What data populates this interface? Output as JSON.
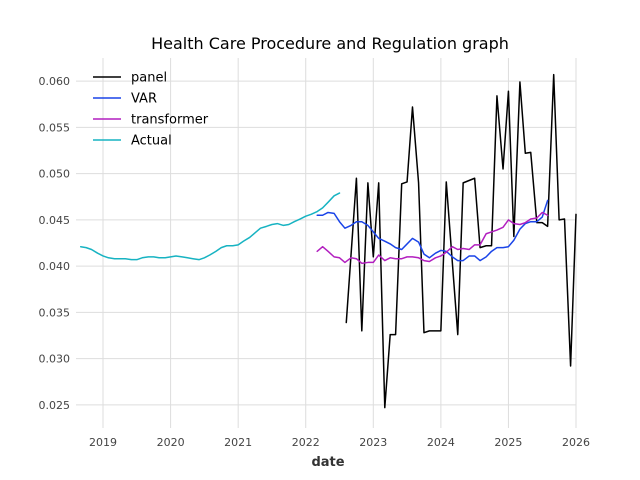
{
  "chart_data": {
    "type": "line",
    "title": "Health Care Procedure and Regulation graph",
    "xlabel": "date",
    "ylabel": "",
    "x_axis": {
      "min": 2018.6,
      "max": 2026.0,
      "ticks": [
        2019,
        2020,
        2021,
        2022,
        2023,
        2024,
        2025,
        2026
      ],
      "tick_labels": [
        "2019",
        "2020",
        "2021",
        "2022",
        "2023",
        "2024",
        "2025",
        "2026"
      ]
    },
    "y_axis": {
      "min": 0.0225,
      "max": 0.0625,
      "ticks": [
        0.025,
        0.03,
        0.035,
        0.04,
        0.045,
        0.05,
        0.055,
        0.06
      ],
      "tick_labels": [
        "0.025",
        "0.030",
        "0.035",
        "0.040",
        "0.045",
        "0.050",
        "0.055",
        "0.060"
      ]
    },
    "grid": true,
    "legend_position": "top-left",
    "series": [
      {
        "name": "panel",
        "color": "#000000",
        "points": [
          [
            2022.6,
            0.0339
          ],
          [
            2022.75,
            0.0495
          ],
          [
            2022.83,
            0.033
          ],
          [
            2022.92,
            0.049
          ],
          [
            2023.0,
            0.041
          ],
          [
            2023.08,
            0.049
          ],
          [
            2023.17,
            0.0247
          ],
          [
            2023.25,
            0.0326
          ],
          [
            2023.33,
            0.0326
          ],
          [
            2023.42,
            0.0489
          ],
          [
            2023.5,
            0.0491
          ],
          [
            2023.58,
            0.0572
          ],
          [
            2023.67,
            0.049
          ],
          [
            2023.75,
            0.0328
          ],
          [
            2023.83,
            0.033
          ],
          [
            2023.92,
            0.033
          ],
          [
            2024.0,
            0.033
          ],
          [
            2024.08,
            0.0491
          ],
          [
            2024.25,
            0.0326
          ],
          [
            2024.33,
            0.049
          ],
          [
            2024.5,
            0.0495
          ],
          [
            2024.58,
            0.042
          ],
          [
            2024.67,
            0.0422
          ],
          [
            2024.75,
            0.0422
          ],
          [
            2024.83,
            0.0584
          ],
          [
            2024.92,
            0.0505
          ],
          [
            2025.0,
            0.0589
          ],
          [
            2025.08,
            0.0432
          ],
          [
            2025.17,
            0.0599
          ],
          [
            2025.25,
            0.0522
          ],
          [
            2025.33,
            0.0523
          ],
          [
            2025.42,
            0.0447
          ],
          [
            2025.5,
            0.0447
          ],
          [
            2025.58,
            0.0443
          ],
          [
            2025.67,
            0.0607
          ],
          [
            2025.75,
            0.045
          ],
          [
            2025.83,
            0.0451
          ],
          [
            2025.92,
            0.0292
          ],
          [
            2026.0,
            0.0456
          ]
        ]
      },
      {
        "name": "VAR",
        "color": "#1a44e8",
        "points": [
          [
            2022.17,
            0.0455
          ],
          [
            2022.25,
            0.0455
          ],
          [
            2022.33,
            0.0458
          ],
          [
            2022.42,
            0.0457
          ],
          [
            2022.5,
            0.0448
          ],
          [
            2022.58,
            0.0441
          ],
          [
            2022.67,
            0.0444
          ],
          [
            2022.75,
            0.0448
          ],
          [
            2022.83,
            0.0448
          ],
          [
            2022.92,
            0.0444
          ],
          [
            2023.0,
            0.0437
          ],
          [
            2023.08,
            0.043
          ],
          [
            2023.17,
            0.0427
          ],
          [
            2023.25,
            0.0424
          ],
          [
            2023.33,
            0.042
          ],
          [
            2023.42,
            0.0418
          ],
          [
            2023.5,
            0.0424
          ],
          [
            2023.58,
            0.043
          ],
          [
            2023.67,
            0.0426
          ],
          [
            2023.75,
            0.0413
          ],
          [
            2023.83,
            0.0409
          ],
          [
            2023.92,
            0.0414
          ],
          [
            2024.0,
            0.0417
          ],
          [
            2024.08,
            0.0416
          ],
          [
            2024.17,
            0.041
          ],
          [
            2024.25,
            0.0406
          ],
          [
            2024.33,
            0.0406
          ],
          [
            2024.42,
            0.0411
          ],
          [
            2024.5,
            0.0411
          ],
          [
            2024.58,
            0.0406
          ],
          [
            2024.67,
            0.041
          ],
          [
            2024.75,
            0.0416
          ],
          [
            2024.83,
            0.042
          ],
          [
            2024.92,
            0.042
          ],
          [
            2025.0,
            0.0421
          ],
          [
            2025.08,
            0.0428
          ],
          [
            2025.17,
            0.044
          ],
          [
            2025.25,
            0.0446
          ],
          [
            2025.33,
            0.0448
          ],
          [
            2025.42,
            0.0448
          ],
          [
            2025.5,
            0.0453
          ],
          [
            2025.58,
            0.0471
          ]
        ]
      },
      {
        "name": "transformer",
        "color": "#b21fbf",
        "points": [
          [
            2022.17,
            0.0416
          ],
          [
            2022.25,
            0.0421
          ],
          [
            2022.33,
            0.0416
          ],
          [
            2022.42,
            0.041
          ],
          [
            2022.5,
            0.0409
          ],
          [
            2022.58,
            0.0404
          ],
          [
            2022.67,
            0.0409
          ],
          [
            2022.75,
            0.0408
          ],
          [
            2022.83,
            0.0403
          ],
          [
            2022.92,
            0.0404
          ],
          [
            2023.0,
            0.0404
          ],
          [
            2023.08,
            0.0412
          ],
          [
            2023.17,
            0.0406
          ],
          [
            2023.25,
            0.0409
          ],
          [
            2023.33,
            0.0408
          ],
          [
            2023.42,
            0.0408
          ],
          [
            2023.5,
            0.041
          ],
          [
            2023.58,
            0.041
          ],
          [
            2023.67,
            0.0409
          ],
          [
            2023.75,
            0.0406
          ],
          [
            2023.83,
            0.0405
          ],
          [
            2023.92,
            0.0409
          ],
          [
            2024.0,
            0.0411
          ],
          [
            2024.08,
            0.0415
          ],
          [
            2024.17,
            0.0421
          ],
          [
            2024.25,
            0.0418
          ],
          [
            2024.33,
            0.0419
          ],
          [
            2024.42,
            0.0418
          ],
          [
            2024.5,
            0.0423
          ],
          [
            2024.58,
            0.0423
          ],
          [
            2024.67,
            0.0435
          ],
          [
            2024.75,
            0.0437
          ],
          [
            2024.83,
            0.0439
          ],
          [
            2024.92,
            0.0442
          ],
          [
            2025.0,
            0.045
          ],
          [
            2025.08,
            0.0446
          ],
          [
            2025.17,
            0.0445
          ],
          [
            2025.25,
            0.0447
          ],
          [
            2025.33,
            0.0451
          ],
          [
            2025.42,
            0.0452
          ],
          [
            2025.5,
            0.0458
          ],
          [
            2025.58,
            0.0455
          ]
        ]
      },
      {
        "name": "Actual",
        "color": "#17b3c2",
        "points": [
          [
            2018.67,
            0.0421
          ],
          [
            2018.75,
            0.042
          ],
          [
            2018.83,
            0.0418
          ],
          [
            2018.92,
            0.0414
          ],
          [
            2019.0,
            0.0411
          ],
          [
            2019.08,
            0.0409
          ],
          [
            2019.17,
            0.0408
          ],
          [
            2019.25,
            0.0408
          ],
          [
            2019.33,
            0.0408
          ],
          [
            2019.42,
            0.0407
          ],
          [
            2019.5,
            0.0407
          ],
          [
            2019.58,
            0.0409
          ],
          [
            2019.67,
            0.041
          ],
          [
            2019.75,
            0.041
          ],
          [
            2019.83,
            0.0409
          ],
          [
            2019.92,
            0.0409
          ],
          [
            2020.0,
            0.041
          ],
          [
            2020.08,
            0.0411
          ],
          [
            2020.17,
            0.041
          ],
          [
            2020.25,
            0.0409
          ],
          [
            2020.33,
            0.0408
          ],
          [
            2020.42,
            0.0407
          ],
          [
            2020.5,
            0.0409
          ],
          [
            2020.58,
            0.0412
          ],
          [
            2020.67,
            0.0416
          ],
          [
            2020.75,
            0.042
          ],
          [
            2020.83,
            0.0422
          ],
          [
            2020.92,
            0.0422
          ],
          [
            2021.0,
            0.0423
          ],
          [
            2021.08,
            0.0427
          ],
          [
            2021.17,
            0.0431
          ],
          [
            2021.25,
            0.0436
          ],
          [
            2021.33,
            0.0441
          ],
          [
            2021.42,
            0.0443
          ],
          [
            2021.5,
            0.0445
          ],
          [
            2021.58,
            0.0446
          ],
          [
            2021.67,
            0.0444
          ],
          [
            2021.75,
            0.0445
          ],
          [
            2021.83,
            0.0448
          ],
          [
            2021.92,
            0.0451
          ],
          [
            2022.0,
            0.0454
          ],
          [
            2022.08,
            0.0456
          ],
          [
            2022.17,
            0.0459
          ],
          [
            2022.25,
            0.0463
          ],
          [
            2022.33,
            0.0469
          ],
          [
            2022.42,
            0.0476
          ],
          [
            2022.5,
            0.0479
          ]
        ]
      }
    ]
  }
}
